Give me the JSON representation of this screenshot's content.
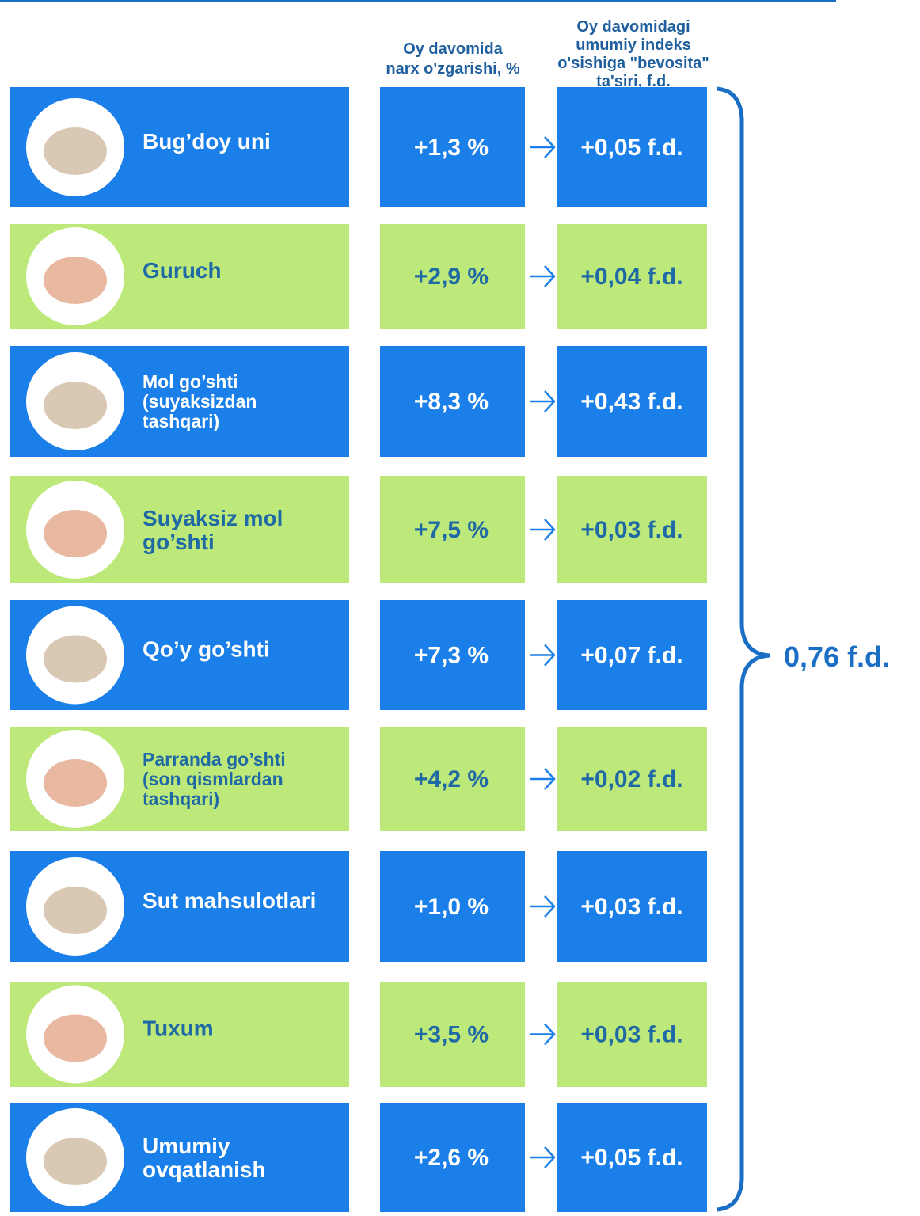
{
  "header": {
    "change_title": [
      "Oy davomida",
      "narx o'zgarishi, %"
    ],
    "impact_title": [
      "Oy davomidagi",
      "umumiy indeks",
      "o'sishiga \"bevosita\"",
      "ta'siri, f.d."
    ]
  },
  "rows": [
    {
      "label": [
        "Bug’doy uni"
      ],
      "change": "+1,3 %",
      "impact": "+0,05 f.d."
    },
    {
      "label": [
        "Guruch"
      ],
      "change": "+2,9 %",
      "impact": "+0,04 f.d."
    },
    {
      "label": [
        "Mol go’shti",
        "(suyaksizdan",
        "tashqari)"
      ],
      "change": "+8,3 %",
      "impact": "+0,43 f.d."
    },
    {
      "label": [
        "Suyaksiz mol",
        "go’shti"
      ],
      "change": "+7,5 %",
      "impact": "+0,03 f.d."
    },
    {
      "label": [
        "Qo’y go’shti"
      ],
      "change": "+7,3 %",
      "impact": "+0,07 f.d."
    },
    {
      "label": [
        "Parranda go’shti",
        "(son qismlardan",
        "tashqari)"
      ],
      "change": "+4,2 %",
      "impact": "+0,02 f.d."
    },
    {
      "label": [
        "Sut mahsulotlari"
      ],
      "change": "+1,0 %",
      "impact": "+0,03 f.d."
    },
    {
      "label": [
        "Tuxum"
      ],
      "change": "+3,5 %",
      "impact": "+0,03 f.d."
    },
    {
      "label": [
        "Umumiy",
        "ovqatlanish"
      ],
      "change": "+2,6 %",
      "impact": "+0,05 f.d."
    }
  ],
  "total": "0,76 f.d."
}
